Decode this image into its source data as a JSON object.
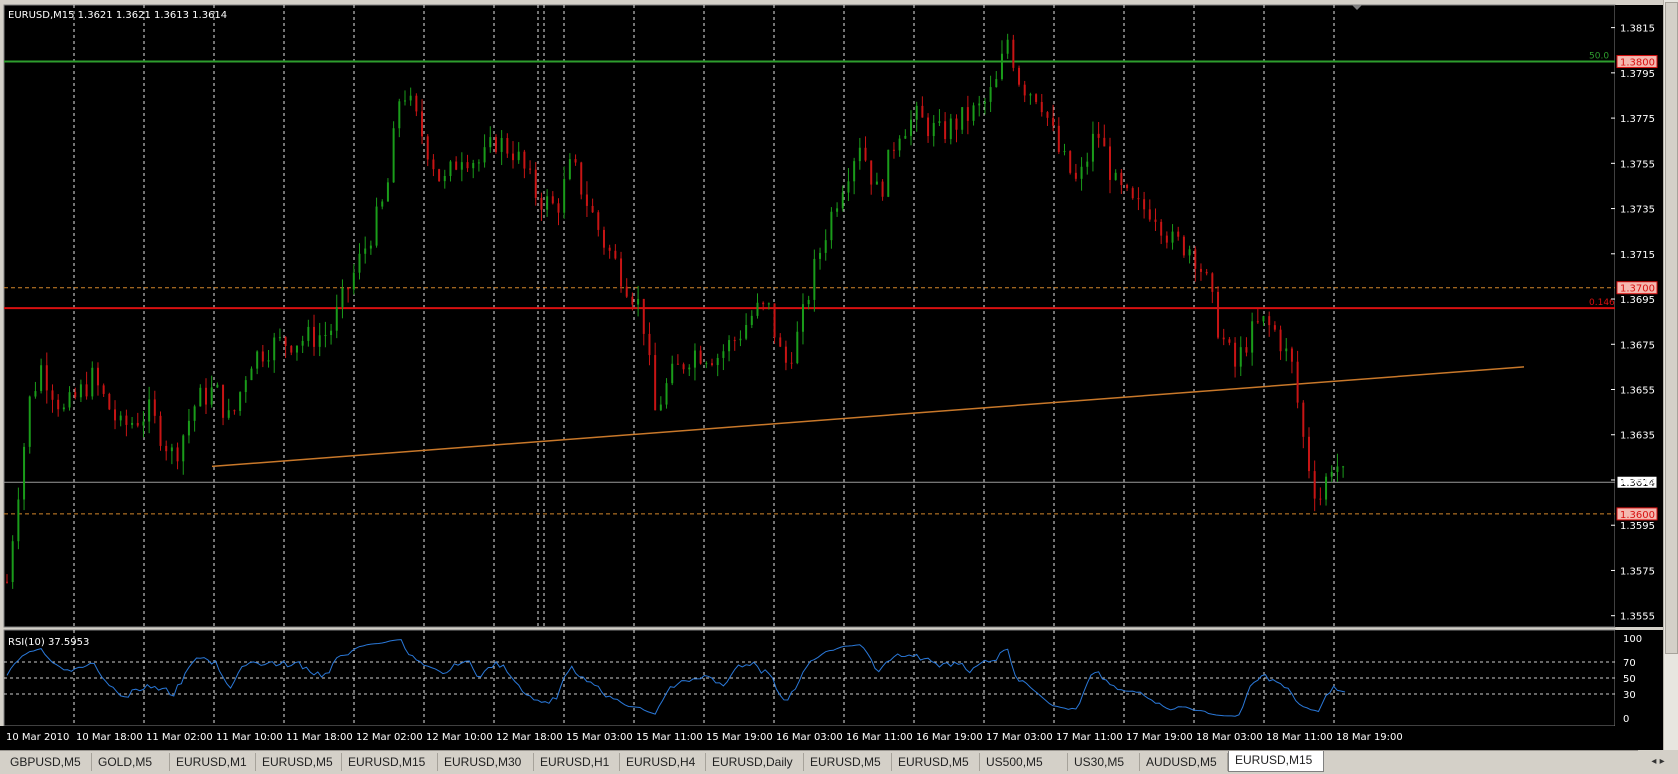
{
  "chart_header": {
    "symbol_line": "EURUSD,M15  1.3621 1.3621 1.3613 1.3614"
  },
  "rsi_header": {
    "label": "RSI(10) 37.5953"
  },
  "colors": {
    "background": "#000000",
    "grid": "#ffffff",
    "bull_candle": "#1a9c1a",
    "bear_candle": "#c81414",
    "green_level": "#2e9e2e",
    "red_level": "#d81010",
    "trendline": "#c8782a",
    "dashed_level": "#d2862a",
    "rsi_line": "#2a78d8",
    "axis_text": "#ffffff"
  },
  "price_axis": {
    "ticks": [
      "1.3815",
      "1.3795",
      "1.3775",
      "1.3755",
      "1.3735",
      "1.3715",
      "1.3695",
      "1.3675",
      "1.3655",
      "1.3635",
      "1.3615",
      "1.3595",
      "1.3575",
      "1.3555"
    ],
    "level_labels": [
      {
        "text": "1.3800",
        "price": 1.38,
        "color": "#d81010"
      },
      {
        "text": "1.3700",
        "price": 1.37,
        "color": "#d81010"
      },
      {
        "text": "1.3614",
        "price": 1.3614,
        "color": "#000000",
        "bg": "#ffffff"
      },
      {
        "text": "1.3600",
        "price": 1.36,
        "color": "#d81010"
      }
    ],
    "fib_labels": [
      {
        "text": "50.0",
        "price": 1.38,
        "color": "#2e9e2e"
      },
      {
        "text": "0.146",
        "price": 1.3691,
        "color": "#d81010"
      }
    ]
  },
  "rsi_axis": {
    "ticks": [
      "100",
      "70",
      "50",
      "30",
      "0"
    ]
  },
  "time_axis": {
    "labels": [
      "10 Mar 2010",
      "10 Mar 18:00",
      "11 Mar 02:00",
      "11 Mar 10:00",
      "11 Mar 18:00",
      "12 Mar 02:00",
      "12 Mar 10:00",
      "12 Mar 18:00",
      "15 Mar 03:00",
      "15 Mar 11:00",
      "15 Mar 19:00",
      "16 Mar 03:00",
      "16 Mar 11:00",
      "16 Mar 19:00",
      "17 Mar 03:00",
      "17 Mar 11:00",
      "17 Mar 19:00",
      "18 Mar 03:00",
      "18 Mar 11:00",
      "18 Mar 19:00"
    ]
  },
  "tabs": [
    {
      "label": "GBPUSD,M5",
      "active": false
    },
    {
      "label": "GOLD,M5",
      "active": false
    },
    {
      "label": "EURUSD,M1",
      "active": false
    },
    {
      "label": "EURUSD,M5",
      "active": false
    },
    {
      "label": "EURUSD,M15",
      "active": false
    },
    {
      "label": "EURUSD,M30",
      "active": false
    },
    {
      "label": "EURUSD,H1",
      "active": false
    },
    {
      "label": "EURUSD,H4",
      "active": false
    },
    {
      "label": "EURUSD,Daily",
      "active": false
    },
    {
      "label": "EURUSD,M5",
      "active": false
    },
    {
      "label": "EURUSD,M5",
      "active": false
    },
    {
      "label": "US500,M5",
      "active": false
    },
    {
      "label": "US30,M5",
      "active": false
    },
    {
      "label": "AUDUSD,M5",
      "active": false
    },
    {
      "label": "EURUSD,M15",
      "active": true
    }
  ],
  "scroll_arrows": "◂ ▸",
  "chart_data": {
    "type": "candlestick",
    "price_range": [
      1.355,
      1.3825
    ],
    "rsi_range": [
      0,
      100
    ],
    "horizontal_levels": [
      {
        "price": 1.38,
        "style": "solid",
        "color": "#2e9e2e"
      },
      {
        "price": 1.3691,
        "style": "solid",
        "color": "#d81010"
      },
      {
        "price": 1.37,
        "style": "dashed",
        "color": "#d2862a"
      },
      {
        "price": 1.36,
        "style": "dashed",
        "color": "#d2862a"
      },
      {
        "price": 1.3614,
        "style": "solid",
        "color": "#9a9a9a"
      }
    ],
    "trendline": {
      "from": {
        "time": "11 Mar 02:00",
        "price": 1.3621
      },
      "to": {
        "time": "18 Mar 19:00",
        "price": 1.3665
      }
    },
    "price_path": [
      [
        0,
        1.357
      ],
      [
        5,
        1.3605
      ],
      [
        12,
        1.365
      ],
      [
        18,
        1.3665
      ],
      [
        30,
        1.3645
      ],
      [
        45,
        1.366
      ],
      [
        60,
        1.3638
      ],
      [
        75,
        1.3645
      ],
      [
        88,
        1.3625
      ],
      [
        100,
        1.365
      ],
      [
        110,
        1.3655
      ],
      [
        118,
        1.364
      ],
      [
        128,
        1.3668
      ],
      [
        140,
        1.3675
      ],
      [
        155,
        1.3677
      ],
      [
        170,
        1.368
      ],
      [
        180,
        1.37
      ],
      [
        190,
        1.372
      ],
      [
        200,
        1.374
      ],
      [
        208,
        1.379
      ],
      [
        218,
        1.377
      ],
      [
        230,
        1.3745
      ],
      [
        240,
        1.376
      ],
      [
        250,
        1.3755
      ],
      [
        258,
        1.3765
      ],
      [
        268,
        1.376
      ],
      [
        280,
        1.374
      ],
      [
        290,
        1.3735
      ],
      [
        298,
        1.3755
      ],
      [
        305,
        1.374
      ],
      [
        315,
        1.372
      ],
      [
        325,
        1.3705
      ],
      [
        335,
        1.369
      ],
      [
        342,
        1.3645
      ],
      [
        350,
        1.366
      ],
      [
        362,
        1.3672
      ],
      [
        375,
        1.367
      ],
      [
        385,
        1.3678
      ],
      [
        395,
        1.369
      ],
      [
        402,
        1.369
      ],
      [
        410,
        1.3665
      ],
      [
        418,
        1.368
      ],
      [
        425,
        1.3705
      ],
      [
        432,
        1.3725
      ],
      [
        440,
        1.3745
      ],
      [
        450,
        1.3765
      ],
      [
        460,
        1.374
      ],
      [
        470,
        1.377
      ],
      [
        480,
        1.3775
      ],
      [
        492,
        1.3768
      ],
      [
        505,
        1.3775
      ],
      [
        515,
        1.378
      ],
      [
        522,
        1.379
      ],
      [
        528,
        1.381
      ],
      [
        535,
        1.379
      ],
      [
        545,
        1.3785
      ],
      [
        555,
        1.376
      ],
      [
        565,
        1.3745
      ],
      [
        575,
        1.377
      ],
      [
        585,
        1.3745
      ],
      [
        595,
        1.3735
      ],
      [
        605,
        1.3735
      ],
      [
        615,
        1.372
      ],
      [
        625,
        1.3718
      ],
      [
        632,
        1.3705
      ],
      [
        640,
        1.368
      ],
      [
        648,
        1.3665
      ],
      [
        655,
        1.3678
      ],
      [
        662,
        1.3685
      ],
      [
        670,
        1.368
      ],
      [
        678,
        1.3665
      ],
      [
        685,
        1.3628
      ],
      [
        692,
        1.3605
      ],
      [
        700,
        1.3625
      ],
      [
        706,
        1.3614
      ]
    ]
  }
}
